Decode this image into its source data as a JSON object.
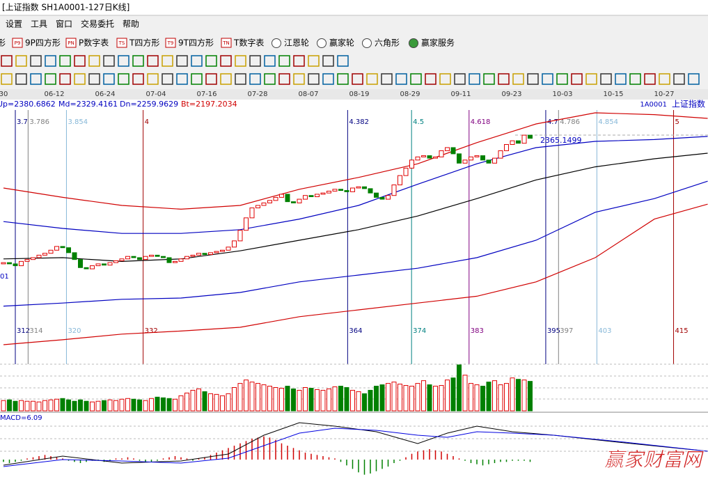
{
  "window_title": "[上证指数  SH1A0001-127日K线]",
  "menu": [
    "设置",
    "工具",
    "窗口",
    "交易委托",
    "帮助"
  ],
  "toolbar": [
    {
      "label": "形"
    },
    {
      "icon": "P9",
      "label": "9P四方形"
    },
    {
      "icon": "PN",
      "label": "P数字表"
    },
    {
      "icon": "TS",
      "label": "T四方形"
    },
    {
      "icon": "T9",
      "label": "9T四方形"
    },
    {
      "icon": "TN",
      "label": "T数字表"
    },
    {
      "label": "江恩轮"
    },
    {
      "label": "赢家轮"
    },
    {
      "label": "六角形"
    },
    {
      "label": "赢家服务"
    }
  ],
  "chart_data": {
    "type": "candlestick",
    "x_labels": [
      "30",
      "06-12",
      "06-24",
      "07-04",
      "07-16",
      "07-28",
      "08-07",
      "08-19",
      "08-29",
      "09-11",
      "09-23",
      "10-03",
      "10-15",
      "10-27"
    ],
    "indicator_labels": [
      "Up=2380.6862",
      "Md=2329.4161",
      "Dn=2259.9629",
      "Bt=2197.2034"
    ],
    "code": "1A0001",
    "name": "上证指数",
    "left_label": "01",
    "last_price": 2365.1499,
    "ylim": [
      2000,
      2420
    ],
    "up_color": "#e00000",
    "down_color": "#008000",
    "open": [
      2158,
      2160,
      2158,
      2155,
      2162,
      2165,
      2168,
      2172,
      2175,
      2180,
      2186,
      2184,
      2176,
      2165,
      2152,
      2150,
      2155,
      2158,
      2156,
      2160,
      2163,
      2166,
      2170,
      2168,
      2165,
      2170,
      2172,
      2170,
      2168,
      2160,
      2162,
      2166,
      2170,
      2172,
      2175,
      2173,
      2176,
      2178,
      2180,
      2185,
      2195,
      2212,
      2232,
      2248,
      2252,
      2256,
      2260,
      2265,
      2270,
      2258,
      2256,
      2262,
      2268,
      2266,
      2270,
      2272,
      2275,
      2278,
      2276,
      2274,
      2280,
      2282,
      2279,
      2272,
      2265,
      2262,
      2268,
      2285,
      2300,
      2312,
      2325,
      2330,
      2332,
      2328,
      2330,
      2340,
      2345,
      2335,
      2320,
      2325,
      2330,
      2332,
      2325,
      2320,
      2328,
      2340,
      2350,
      2356,
      2352,
      2365
    ],
    "close": [
      2160,
      2158,
      2155,
      2162,
      2165,
      2168,
      2172,
      2175,
      2180,
      2186,
      2184,
      2176,
      2165,
      2152,
      2150,
      2155,
      2158,
      2156,
      2160,
      2163,
      2166,
      2170,
      2168,
      2165,
      2170,
      2172,
      2170,
      2168,
      2160,
      2162,
      2166,
      2170,
      2172,
      2175,
      2173,
      2176,
      2178,
      2180,
      2185,
      2195,
      2212,
      2232,
      2248,
      2252,
      2256,
      2260,
      2265,
      2270,
      2258,
      2256,
      2262,
      2268,
      2266,
      2270,
      2272,
      2275,
      2278,
      2276,
      2274,
      2280,
      2282,
      2279,
      2272,
      2265,
      2262,
      2268,
      2285,
      2300,
      2312,
      2325,
      2330,
      2332,
      2328,
      2330,
      2340,
      2345,
      2335,
      2320,
      2325,
      2330,
      2332,
      2325,
      2320,
      2328,
      2340,
      2350,
      2356,
      2352,
      2365,
      2360
    ],
    "bands": {
      "x": [
        0,
        10,
        20,
        30,
        40,
        50,
        60,
        70,
        80,
        90,
        100,
        110,
        119
      ],
      "series": [
        {
          "color": "#d00000",
          "values": [
            2280,
            2265,
            2252,
            2246,
            2252,
            2278,
            2297,
            2319,
            2353,
            2383,
            2401,
            2398,
            2392
          ]
        },
        {
          "color": "#0000c0",
          "values": [
            2226,
            2215,
            2207,
            2207,
            2213,
            2230,
            2252,
            2286,
            2319,
            2345,
            2355,
            2358,
            2363
          ]
        },
        {
          "color": "#000000",
          "values": [
            2166,
            2168,
            2162,
            2166,
            2179,
            2196,
            2213,
            2235,
            2263,
            2293,
            2314,
            2327,
            2336
          ]
        },
        {
          "color": "#0000c0",
          "values": [
            2090,
            2095,
            2101,
            2103,
            2112,
            2129,
            2140,
            2151,
            2168,
            2196,
            2241,
            2263,
            2291
          ]
        },
        {
          "color": "#d00000",
          "values": [
            2028,
            2036,
            2045,
            2050,
            2056,
            2073,
            2084,
            2095,
            2106,
            2129,
            2168,
            2230,
            2254
          ]
        }
      ]
    },
    "cycle_lines": [
      {
        "top": "3.7",
        "bottom": 312,
        "color": "#000080"
      },
      {
        "top": "3.786",
        "bottom": 314,
        "color": "#808080"
      },
      {
        "top": "3.854",
        "bottom": 320,
        "color": "#87b8d8"
      },
      {
        "top": "4",
        "bottom": 332,
        "color": "#a00000"
      },
      {
        "top": "4.382",
        "bottom": 364,
        "color": "#000080"
      },
      {
        "top": "4.5",
        "bottom": 374,
        "color": "#008080"
      },
      {
        "top": "4.618",
        "bottom": 383,
        "color": "#800080"
      },
      {
        "top": "4.7",
        "bottom": 395,
        "color": "#000080"
      },
      {
        "top": "4.786",
        "bottom": 397,
        "color": "#808080"
      },
      {
        "top": "4.854",
        "bottom": 403,
        "color": "#87b8d8"
      },
      {
        "top": "5",
        "bottom": 415,
        "color": "#a00000"
      }
    ],
    "volume": {
      "values": [
        15,
        16,
        14,
        15,
        14,
        14,
        13,
        15,
        16,
        17,
        18,
        16,
        14,
        16,
        14,
        13,
        14,
        15,
        16,
        15,
        17,
        18,
        17,
        16,
        15,
        18,
        20,
        19,
        18,
        17,
        22,
        26,
        30,
        32,
        28,
        25,
        24,
        22,
        25,
        34,
        40,
        45,
        42,
        40,
        38,
        36,
        34,
        33,
        36,
        32,
        30,
        34,
        33,
        31,
        30,
        32,
        35,
        36,
        34,
        30,
        28,
        25,
        30,
        36,
        38,
        40,
        42,
        39,
        37,
        36,
        40,
        44,
        38,
        36,
        37,
        45,
        48,
        67,
        52,
        40,
        38,
        36,
        42,
        44,
        38,
        40,
        48,
        46,
        45,
        43
      ]
    },
    "macd": {
      "label": "MACD=6.09",
      "x": [
        0,
        10,
        20,
        30,
        38,
        44,
        50,
        56,
        63,
        70,
        75,
        80,
        86,
        93,
        105,
        119
      ],
      "series": [
        {
          "color": "#000000",
          "values": [
            -4.8,
            3,
            -3,
            -1.2,
            4.8,
            21,
            31.8,
            28.8,
            24,
            13.8,
            22.8,
            28.8,
            24,
            21,
            14.4,
            7.2
          ]
        },
        {
          "color": "#0000e0",
          "values": [
            -6,
            0,
            -1.2,
            -3,
            1.2,
            12,
            22.8,
            27,
            25.2,
            21,
            19.2,
            24,
            22.8,
            21,
            15,
            7.2
          ]
        }
      ],
      "histogram": [
        -2,
        -3,
        -2,
        -1,
        1,
        2,
        3,
        4,
        3,
        2,
        1,
        -1,
        -2,
        -3,
        -2,
        -1,
        -1,
        -2,
        -1,
        1,
        1,
        2,
        1,
        -1,
        -2,
        -2,
        -1,
        1,
        2,
        3,
        2,
        1,
        -1,
        1,
        2,
        4,
        6,
        8,
        10,
        12,
        14,
        16,
        18,
        19,
        20,
        19,
        17,
        14,
        12,
        10,
        8,
        6,
        5,
        4,
        3,
        2,
        1,
        -2,
        -5,
        -8,
        -11,
        -13,
        -12,
        -10,
        -8,
        -6,
        -3,
        -1,
        2,
        5,
        7,
        8,
        9,
        8,
        7,
        5,
        3,
        1,
        -1,
        -3,
        -4,
        -5,
        -4,
        -3,
        -2,
        -2,
        -1,
        -1,
        -1,
        -2
      ]
    },
    "watermark": "赢家财富网"
  }
}
